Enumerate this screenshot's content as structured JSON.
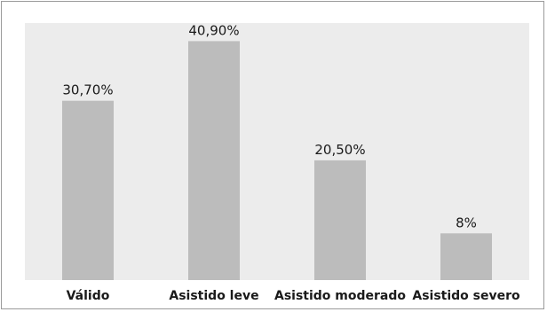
{
  "chart_data": {
    "type": "bar",
    "categories": [
      "Válido",
      "Asistido leve",
      "Asistido moderado",
      "Asistido severo"
    ],
    "values": [
      30.7,
      40.9,
      20.5,
      8
    ],
    "value_labels": [
      "30,70%",
      "40,90%",
      "20,50%",
      "8%"
    ],
    "title": "",
    "xlabel": "",
    "ylabel": "",
    "ylim": [
      0,
      44
    ],
    "grid": false,
    "colors": {
      "plot_background": "#ececec",
      "bar": "#bcbcbc",
      "border": "#9a9a9a",
      "text": "#1a1a1a"
    }
  }
}
